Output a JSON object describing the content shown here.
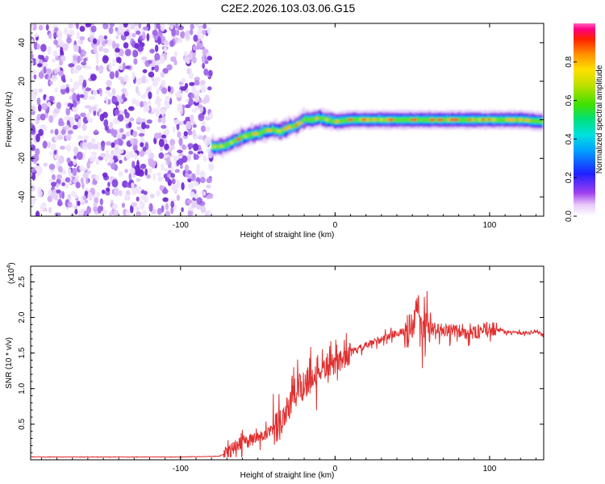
{
  "figure": {
    "title": "C2E2.2026.103.03.06.G15"
  },
  "chart_data": [
    {
      "type": "heatmap",
      "title": "C2E2.2026.103.03.06.G15",
      "xlabel": "Height of straight line (km)",
      "ylabel": "Frequency (Hz)",
      "xlim": [
        -197,
        135
      ],
      "ylim": [
        -50,
        50
      ],
      "xticks": [
        -100,
        0,
        100
      ],
      "yticks": [
        -40,
        -20,
        0,
        20,
        40
      ],
      "colorbar": {
        "label": "Normalized spectral amplitude",
        "range": [
          0,
          1
        ],
        "ticks": [
          0.0,
          0.2,
          0.4,
          0.6,
          0.8
        ]
      },
      "noise_region_x": [
        -197,
        -80
      ],
      "ridge": {
        "description": "frequency track of peak amplitude",
        "x": [
          -80,
          -75,
          -70,
          -65,
          -60,
          -55,
          -50,
          -45,
          -40,
          -35,
          -30,
          -25,
          -20,
          -15,
          -10,
          -5,
          0,
          10,
          20,
          40,
          60,
          80,
          100,
          120,
          135
        ],
        "frequency": [
          -14,
          -14,
          -13,
          -11,
          -9,
          -8,
          -7,
          -6,
          -5,
          -6,
          -4,
          -3,
          0,
          0,
          1,
          0,
          -1,
          0,
          0,
          0,
          0,
          0,
          0,
          0,
          -1
        ]
      }
    },
    {
      "type": "line",
      "xlabel": "Height of straight line (km)",
      "ylabel": "SNR (10 * v/v)",
      "yscale_label": "(x10",
      "yscale_exp": "4",
      "xlim": [
        -197,
        135
      ],
      "ylim": [
        0,
        2.72
      ],
      "xticks": [
        -100,
        0,
        100
      ],
      "yticks": [
        0.5,
        1.0,
        1.5,
        2.0,
        2.5
      ],
      "color": "#e03030",
      "series": [
        {
          "name": "SNR",
          "x": [
            -197,
            -150,
            -100,
            -75,
            -70,
            -65,
            -60,
            -50,
            -40,
            -35,
            -30,
            -25,
            -20,
            -15,
            -10,
            -5,
            0,
            10,
            20,
            25,
            30,
            40,
            50,
            54,
            56,
            58,
            60,
            70,
            80,
            90,
            100,
            110,
            120,
            130,
            135
          ],
          "y": [
            0.04,
            0.04,
            0.04,
            0.05,
            0.1,
            0.18,
            0.25,
            0.3,
            0.4,
            0.55,
            0.75,
            0.95,
            1.1,
            1.15,
            1.25,
            1.3,
            1.35,
            1.5,
            1.6,
            1.65,
            1.7,
            1.78,
            1.82,
            2.2,
            1.7,
            1.9,
            1.85,
            1.82,
            1.8,
            1.78,
            1.85,
            1.8,
            1.78,
            1.8,
            1.75
          ]
        }
      ]
    }
  ]
}
